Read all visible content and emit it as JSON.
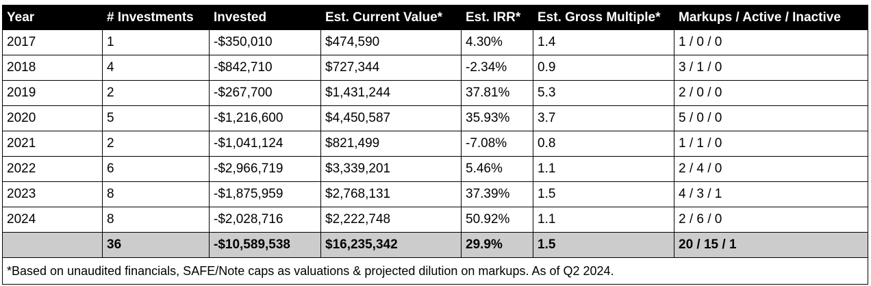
{
  "table": {
    "headers": [
      "Year",
      "# Investments",
      "Invested",
      "Est. Current Value*",
      "Est. IRR*",
      "Est. Gross Multiple*",
      "Markups / Active / Inactive"
    ],
    "rows": [
      [
        "2017",
        "1",
        "-$350,010",
        "$474,590",
        "4.30%",
        "1.4",
        "1 / 0 / 0"
      ],
      [
        "2018",
        "4",
        "-$842,710",
        "$727,344",
        "-2.34%",
        "0.9",
        "3 / 1 / 0"
      ],
      [
        "2019",
        "2",
        "-$267,700",
        "$1,431,244",
        "37.81%",
        "5.3",
        "2 / 0 / 0"
      ],
      [
        "2020",
        "5",
        "-$1,216,600",
        "$4,450,587",
        "35.93%",
        "3.7",
        "5 / 0 / 0"
      ],
      [
        "2021",
        "2",
        "-$1,041,124",
        "$821,499",
        "-7.08%",
        "0.8",
        "1 / 1 / 0"
      ],
      [
        "2022",
        "6",
        "-$2,966,719",
        "$3,339,201",
        "5.46%",
        "1.1",
        "2 / 4 / 0"
      ],
      [
        "2023",
        "8",
        "-$1,875,959",
        "$2,768,131",
        "37.39%",
        "1.5",
        "4 / 3 / 1"
      ],
      [
        "2024",
        "8",
        "-$2,028,716",
        "$2,222,748",
        "50.92%",
        "1.1",
        "2 / 6 / 0"
      ]
    ],
    "total": [
      "",
      "36",
      "-$10,589,538",
      "$16,235,342",
      "29.9%",
      "1.5",
      "20 / 15 / 1"
    ],
    "footnote": "*Based on unaudited financials, SAFE/Note caps as valuations & projected dilution on markups. As of Q2 2024."
  }
}
